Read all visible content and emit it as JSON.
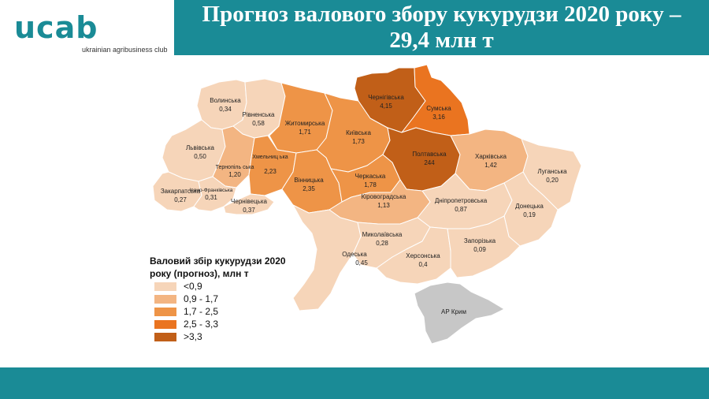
{
  "header": {
    "title_line1": "Прогноз валового збору кукурудзи 2020 року –",
    "title_line2": "29,4 млн т"
  },
  "logo": {
    "text": "ucab",
    "subtitle": "ukrainian agribusiness club"
  },
  "colors": {
    "teal": "#1a8b96",
    "class_1": "#f6d5b9",
    "class_2": "#f3b582",
    "class_3": "#ee9447",
    "class_4": "#ea7420",
    "class_5": "#c15f18",
    "crimea": "#c7c7c7"
  },
  "legend": {
    "title_line1": "Валовий збір кукурудзи 2020",
    "title_line2": "року (прогноз), млн т",
    "items": [
      {
        "label": "<0,9",
        "color": "#f6d5b9"
      },
      {
        "label": "0,9 - 1,7",
        "color": "#f3b582"
      },
      {
        "label": "1,7 - 2,5",
        "color": "#ee9447"
      },
      {
        "label": "2,5 - 3,3",
        "color": "#ea7420"
      },
      {
        "label": ">3,3",
        "color": "#c15f18"
      }
    ]
  },
  "regions": [
    {
      "name": "Волинська",
      "value": "0,34",
      "class": 1
    },
    {
      "name": "Рівненська",
      "value": "0,58",
      "class": 1
    },
    {
      "name": "Житомирська",
      "value": "1,71",
      "class": 3
    },
    {
      "name": "Київська",
      "value": "1,73",
      "class": 3
    },
    {
      "name": "Чернігівська",
      "value": "4,15",
      "class": 5
    },
    {
      "name": "Сумська",
      "value": "3,16",
      "class": 4
    },
    {
      "name": "Львівська",
      "value": "0,50",
      "class": 1
    },
    {
      "name": "Тернопіль ська",
      "value": "1,20",
      "class": 2
    },
    {
      "name": "Хмельниц ька",
      "value": "2,23",
      "class": 3
    },
    {
      "name": "Вінницька",
      "value": "2,35",
      "class": 3
    },
    {
      "name": "Черкаська",
      "value": "1,78",
      "class": 3
    },
    {
      "name": "Полтавська",
      "value": "244",
      "class": 5
    },
    {
      "name": "Харківська",
      "value": "1,42",
      "class": 2
    },
    {
      "name": "Луганська",
      "value": "0,20",
      "class": 1
    },
    {
      "name": "Закарпатська",
      "value": "0,27",
      "class": 1
    },
    {
      "name": "Івано-Франківська",
      "value": "0,31",
      "class": 1
    },
    {
      "name": "Чернівецька",
      "value": "0,37",
      "class": 1
    },
    {
      "name": "Кіровоградська",
      "value": "1,13",
      "class": 2
    },
    {
      "name": "Дніпропетровська",
      "value": "0,87",
      "class": 1
    },
    {
      "name": "Донецька",
      "value": "0,19",
      "class": 1
    },
    {
      "name": "Миколаївська",
      "value": "0,28",
      "class": 1
    },
    {
      "name": "Одеська",
      "value": "0,45",
      "class": 1
    },
    {
      "name": "Херсонська",
      "value": "0,4",
      "class": 1
    },
    {
      "name": "Запорізька",
      "value": "0,09",
      "class": 1
    },
    {
      "name": "АР Крим",
      "value": "",
      "class": 0
    }
  ]
}
